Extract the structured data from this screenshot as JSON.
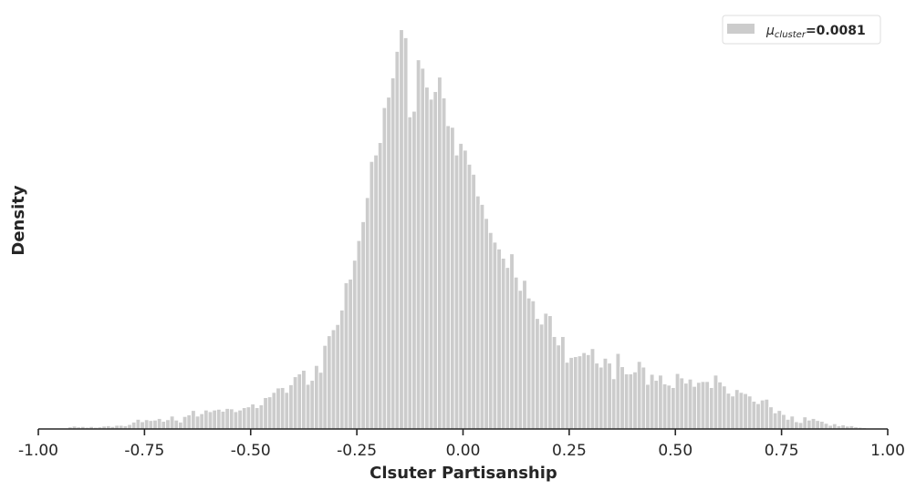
{
  "chart_data": {
    "type": "bar",
    "subtype": "histogram",
    "title": "",
    "xlabel": "Clsuter Partisanship",
    "ylabel": "Density",
    "xlim": [
      -1.0,
      1.0
    ],
    "ylim": [
      0,
      1.0
    ],
    "y_ticks_shown": false,
    "grid": false,
    "legend_position": "top-right",
    "x_ticks": [
      "-1.00",
      "-0.75",
      "-0.50",
      "-0.25",
      "0.00",
      "0.25",
      "0.50",
      "0.75",
      "1.00"
    ],
    "legend": {
      "symbol": "μ",
      "subscript": "cluster",
      "equals_value": "=0.0081"
    },
    "bar_color": "#cccccc",
    "bin_width": 0.01,
    "bins_start": -1.0,
    "values": [
      0,
      0,
      0,
      0,
      0,
      0,
      0.002,
      0.005,
      0.007,
      0.005,
      0.006,
      0.004,
      0.006,
      0.004,
      0.005,
      0.007,
      0.008,
      0.006,
      0.009,
      0.009,
      0.008,
      0.011,
      0.017,
      0.024,
      0.018,
      0.023,
      0.021,
      0.022,
      0.026,
      0.019,
      0.023,
      0.032,
      0.022,
      0.017,
      0.031,
      0.035,
      0.046,
      0.032,
      0.038,
      0.047,
      0.043,
      0.047,
      0.049,
      0.044,
      0.051,
      0.05,
      0.043,
      0.047,
      0.053,
      0.055,
      0.062,
      0.053,
      0.06,
      0.078,
      0.08,
      0.091,
      0.102,
      0.103,
      0.091,
      0.11,
      0.13,
      0.137,
      0.146,
      0.111,
      0.121,
      0.158,
      0.141,
      0.208,
      0.232,
      0.247,
      0.26,
      0.296,
      0.364,
      0.373,
      0.42,
      0.469,
      0.516,
      0.576,
      0.666,
      0.682,
      0.713,
      0.8,
      0.826,
      0.874,
      0.94,
      0.994,
      0.974,
      0.777,
      0.791,
      0.919,
      0.898,
      0.851,
      0.821,
      0.84,
      0.876,
      0.824,
      0.755,
      0.751,
      0.682,
      0.711,
      0.694,
      0.659,
      0.634,
      0.58,
      0.559,
      0.524,
      0.489,
      0.465,
      0.448,
      0.425,
      0.402,
      0.436,
      0.378,
      0.345,
      0.37,
      0.326,
      0.319,
      0.275,
      0.261,
      0.288,
      0.282,
      0.23,
      0.209,
      0.23,
      0.166,
      0.178,
      0.18,
      0.182,
      0.19,
      0.185,
      0.2,
      0.164,
      0.154,
      0.176,
      0.164,
      0.125,
      0.188,
      0.155,
      0.137,
      0.137,
      0.142,
      0.168,
      0.154,
      0.111,
      0.136,
      0.121,
      0.134,
      0.112,
      0.109,
      0.103,
      0.138,
      0.127,
      0.114,
      0.124,
      0.106,
      0.116,
      0.118,
      0.118,
      0.103,
      0.134,
      0.117,
      0.107,
      0.089,
      0.082,
      0.098,
      0.091,
      0.088,
      0.082,
      0.069,
      0.063,
      0.072,
      0.074,
      0.055,
      0.04,
      0.046,
      0.036,
      0.024,
      0.032,
      0.018,
      0.016,
      0.03,
      0.022,
      0.026,
      0.021,
      0.019,
      0.014,
      0.009,
      0.013,
      0.008,
      0.01,
      0.007,
      0.008,
      0.005,
      0.004,
      0.003,
      0.002,
      0.001,
      0.001
    ]
  }
}
